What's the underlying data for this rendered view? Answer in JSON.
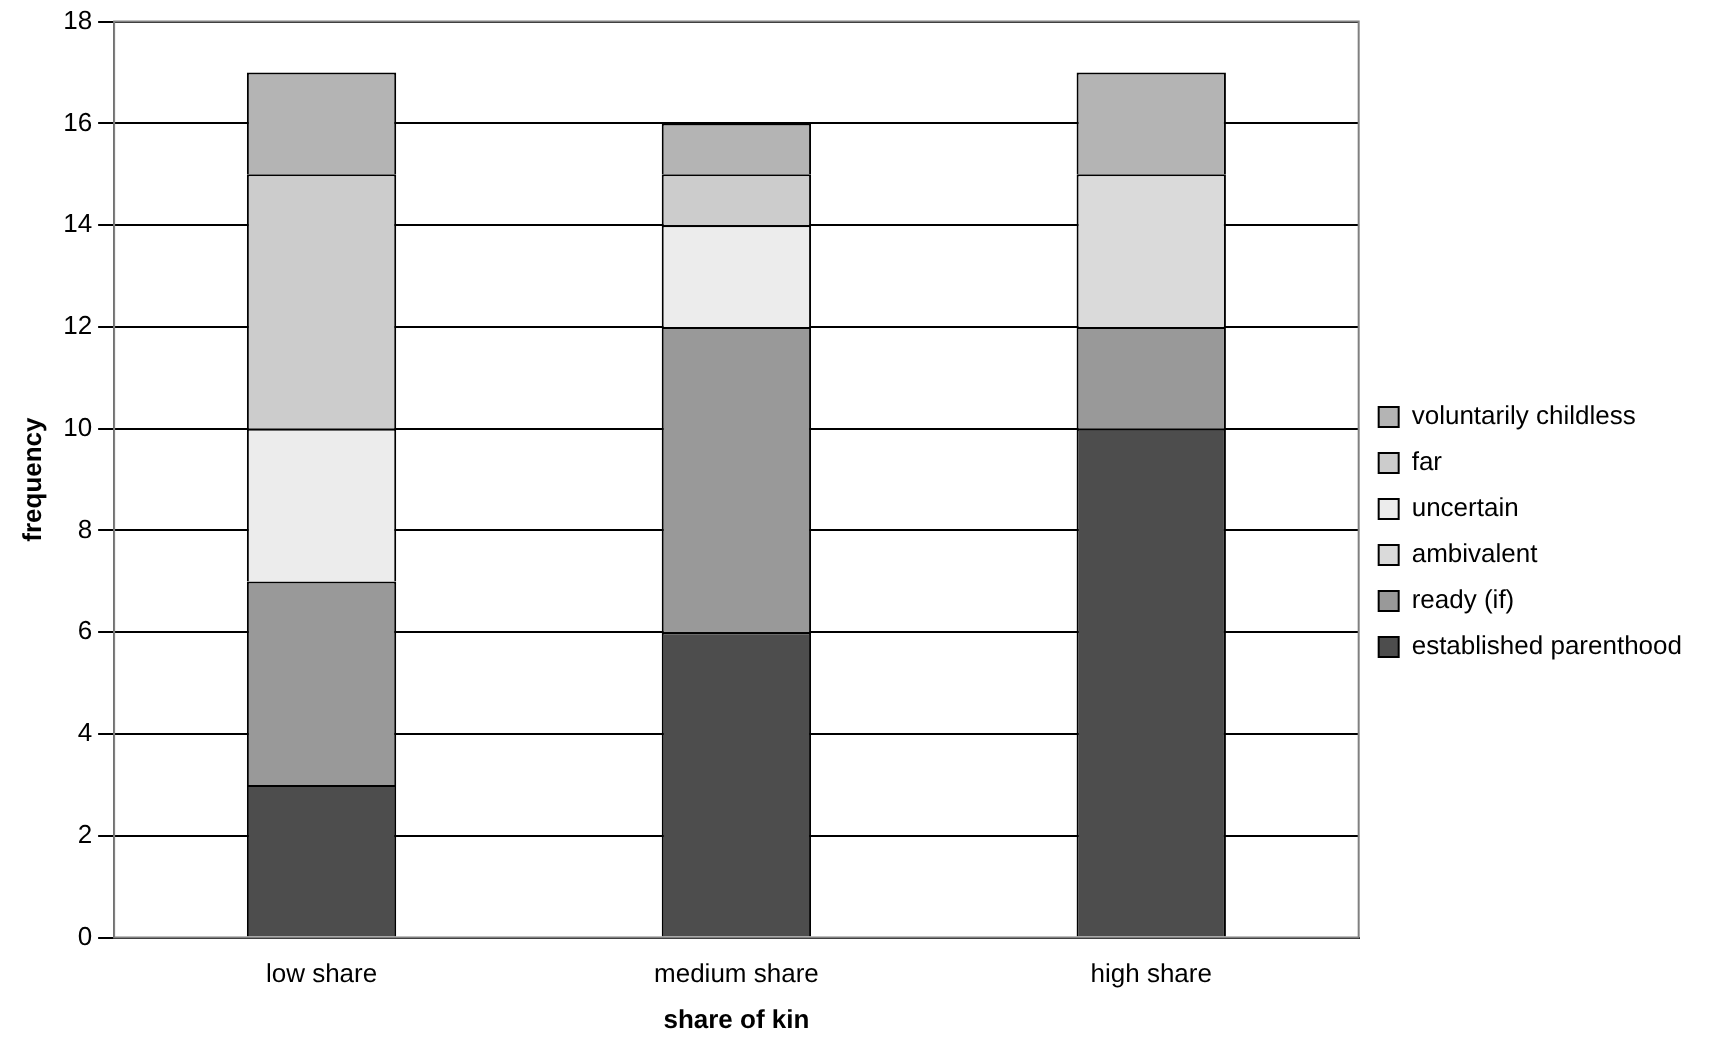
{
  "chart_data": {
    "type": "bar",
    "stacked": true,
    "xlabel": "share of kin",
    "ylabel": "frequency",
    "categories": [
      "low share",
      "medium share",
      "high share"
    ],
    "series": [
      {
        "name": "established parenthood",
        "color": "#4d4d4d",
        "values": [
          3,
          6,
          10
        ]
      },
      {
        "name": "ready (if)",
        "color": "#999999",
        "values": [
          4,
          6,
          2
        ]
      },
      {
        "name": "ambivalent",
        "color": "#dadada",
        "values": [
          0,
          0,
          3
        ]
      },
      {
        "name": "uncertain",
        "color": "#ececec",
        "values": [
          3,
          2,
          0
        ]
      },
      {
        "name": "far",
        "color": "#cccccc",
        "values": [
          5,
          1,
          0
        ]
      },
      {
        "name": "voluntarily childless",
        "color": "#b4b4b4",
        "values": [
          2,
          1,
          2
        ]
      }
    ],
    "ylim": [
      0,
      18
    ],
    "yticks": [
      0,
      2,
      4,
      6,
      8,
      10,
      12,
      14,
      16,
      18
    ],
    "grid": "y",
    "legend": "right"
  }
}
